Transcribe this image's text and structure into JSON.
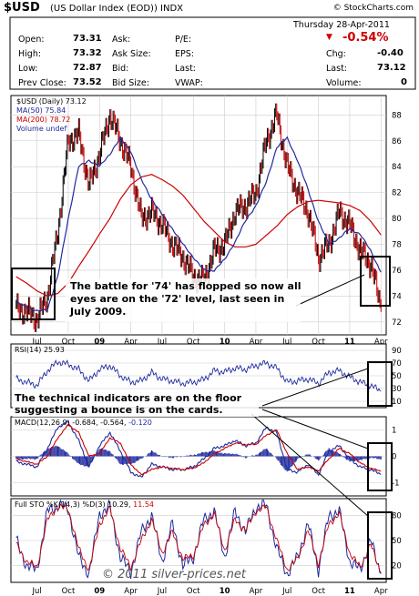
{
  "header": {
    "symbol": "$USD",
    "name": "(US Dollar Index (EOD))",
    "exchange": "INDX",
    "brand": "© StockCharts.com",
    "date": "Thursday  28-Apr-2011",
    "pct_change": "-0.54%"
  },
  "quote": {
    "open_label": "Open:",
    "open": "73.31",
    "high_label": "High:",
    "high": "73.32",
    "low_label": "Low:",
    "low": "72.87",
    "prev_label": "Prev Close:",
    "prev": "73.52",
    "ask_label": "Ask:",
    "asksize_label": "Ask Size:",
    "bid_label": "Bid:",
    "bidsize_label": "Bid Size:",
    "pe_label": "P/E:",
    "eps_label": "EPS:",
    "last_label": "Last:",
    "vwap_label": "VWAP:",
    "chg_label": "Chg:",
    "chg": "-0.40",
    "last2_label": "Last:",
    "last": "73.12",
    "volume_label": "Volume:",
    "volume": "0"
  },
  "colors": {
    "price_up": "#000000",
    "price_down": "#cc0000",
    "ma50": "#1f2a9e",
    "ma200": "#cc0000",
    "indicator": "#1f2a9e",
    "signal": "#cc0000",
    "box": "#000000",
    "pct_red": "#cc0000"
  },
  "chart_data": [
    {
      "type": "line",
      "title": "$USD (Daily) 73.12",
      "legend": [
        "$USD (Daily) 73.12",
        "MA(50) 75.84",
        "MA(200) 78.72",
        "Volume undef"
      ],
      "ylim": [
        71,
        89.5
      ],
      "yticks": [
        72,
        74,
        76,
        78,
        80,
        82,
        84,
        86,
        88
      ],
      "x_labels": [
        "Jul",
        "Oct",
        "09",
        "Apr",
        "Jul",
        "Oct",
        "10",
        "Apr",
        "Jul",
        "Oct",
        "11",
        "Apr"
      ],
      "x": [
        "2008-05",
        "2008-06",
        "2008-07",
        "2008-08",
        "2008-09",
        "2008-10",
        "2008-11",
        "2008-12",
        "2009-01",
        "2009-02",
        "2009-03",
        "2009-04",
        "2009-05",
        "2009-06",
        "2009-07",
        "2009-08",
        "2009-09",
        "2009-10",
        "2009-11",
        "2009-12",
        "2010-01",
        "2010-02",
        "2010-03",
        "2010-04",
        "2010-05",
        "2010-06",
        "2010-07",
        "2010-08",
        "2010-09",
        "2010-10",
        "2010-11",
        "2010-12",
        "2011-01",
        "2011-02",
        "2011-03",
        "2011-04"
      ],
      "series": [
        {
          "name": "$USD (Daily) 73.12",
          "values": [
            73.0,
            72.8,
            72.2,
            74.0,
            79.0,
            86.0,
            86.5,
            82.5,
            85.0,
            88.0,
            86.0,
            84.0,
            80.0,
            80.5,
            79.5,
            78.0,
            77.0,
            75.5,
            75.2,
            77.5,
            78.0,
            80.5,
            81.0,
            82.0,
            86.0,
            88.0,
            84.0,
            82.0,
            80.5,
            77.0,
            78.0,
            80.5,
            79.5,
            77.5,
            76.5,
            73.12
          ]
        },
        {
          "name": "MA(50) 75.84",
          "values": [
            73.5,
            73.2,
            72.8,
            73.0,
            75.5,
            80.0,
            84.0,
            84.5,
            84.0,
            85.0,
            86.2,
            85.2,
            83.0,
            81.5,
            80.3,
            79.2,
            78.0,
            77.0,
            76.0,
            76.0,
            76.8,
            78.2,
            79.8,
            81.0,
            82.8,
            85.5,
            86.2,
            84.5,
            82.2,
            79.8,
            78.0,
            78.5,
            79.2,
            78.8,
            77.5,
            75.84
          ]
        },
        {
          "name": "MA(200) 78.72",
          "values": [
            75.5,
            75.0,
            74.4,
            74.0,
            74.2,
            75.0,
            76.3,
            77.5,
            78.8,
            80.0,
            81.5,
            82.6,
            83.2,
            83.4,
            83.0,
            82.5,
            81.8,
            80.8,
            79.8,
            79.0,
            78.2,
            77.8,
            77.8,
            78.0,
            78.7,
            79.4,
            80.3,
            80.9,
            81.3,
            81.4,
            81.3,
            81.2,
            81.0,
            80.6,
            79.8,
            78.72
          ]
        }
      ]
    },
    {
      "type": "line",
      "title": "RSI(14) 25.93",
      "ylim": [
        0,
        100
      ],
      "yticks": [
        10,
        30,
        50,
        70,
        90
      ],
      "series": [
        {
          "name": "RSI(14) 25.93",
          "values": [
            45,
            40,
            35,
            58,
            72,
            68,
            60,
            42,
            60,
            66,
            50,
            40,
            42,
            55,
            45,
            42,
            38,
            40,
            44,
            58,
            56,
            62,
            60,
            66,
            70,
            62,
            40,
            42,
            45,
            38,
            55,
            58,
            48,
            40,
            35,
            25.93
          ]
        }
      ]
    },
    {
      "type": "line",
      "title": "MACD(12,26,9) -0.684, -0.564, -0.120",
      "ylim": [
        -1.5,
        1.5
      ],
      "yticks": [
        -1,
        0,
        1
      ],
      "series": [
        {
          "name": "MACD(12,26,9) -0.684",
          "values": [
            -0.2,
            -0.3,
            -0.4,
            0.3,
            1.1,
            1.3,
            0.6,
            -0.4,
            0.4,
            0.9,
            0.2,
            -0.6,
            -0.8,
            -0.3,
            -0.4,
            -0.5,
            -0.5,
            -0.4,
            -0.1,
            0.3,
            0.4,
            0.6,
            0.4,
            0.5,
            1.1,
            0.9,
            -0.5,
            -0.6,
            -0.3,
            -0.7,
            0.2,
            0.4,
            -0.1,
            -0.4,
            -0.5,
            -0.684
          ]
        },
        {
          "name": "-0.564",
          "values": [
            -0.1,
            -0.2,
            -0.3,
            0.0,
            0.7,
            1.2,
            0.9,
            0.0,
            0.1,
            0.7,
            0.5,
            -0.3,
            -0.7,
            -0.5,
            -0.4,
            -0.45,
            -0.5,
            -0.45,
            -0.25,
            0.1,
            0.3,
            0.5,
            0.45,
            0.45,
            0.8,
            1.0,
            0.1,
            -0.5,
            -0.4,
            -0.55,
            -0.1,
            0.3,
            0.1,
            -0.25,
            -0.45,
            -0.564
          ]
        }
      ]
    },
    {
      "type": "line",
      "title": "Full STO %K(14,3) %D(3) 10.29, 11.54",
      "ylim": [
        0,
        100
      ],
      "yticks": [
        20,
        50,
        80
      ],
      "series": [
        {
          "name": "%K(14,3) 10.29",
          "values": [
            50,
            20,
            15,
            85,
            92,
            88,
            30,
            10,
            82,
            90,
            30,
            12,
            60,
            80,
            25,
            70,
            20,
            30,
            75,
            85,
            30,
            85,
            60,
            90,
            92,
            40,
            10,
            30,
            70,
            15,
            80,
            85,
            25,
            15,
            50,
            10.29
          ]
        },
        {
          "name": "%D(3) 11.54",
          "values": [
            45,
            25,
            18,
            75,
            90,
            88,
            40,
            15,
            70,
            88,
            40,
            18,
            50,
            75,
            35,
            60,
            28,
            32,
            68,
            82,
            38,
            75,
            62,
            85,
            90,
            50,
            15,
            28,
            62,
            22,
            70,
            82,
            35,
            18,
            45,
            11.54
          ]
        }
      ]
    }
  ],
  "annotations": {
    "price_note": "The battle for '74' has flopped so now all eyes are on the '72' level, last seen in July 2009.",
    "price_note_lines": [
      "The battle for '74' has flopped so now all",
      "eyes are on the '72' level, last seen in",
      "July 2009."
    ],
    "indicator_note_lines": [
      "The technical indicators are on the floor",
      "suggesting a bounce is on the cards."
    ],
    "copyright": "© 2011 silver-prices.net"
  },
  "pane_legends": {
    "rsi": "RSI(14) 25.93",
    "macd_main": "MACD(12,26,9) -0.684, -0.564,",
    "macd_hist": "-0.120",
    "sto_main": "Full STO %K(14,3) %D(3) 10.29,",
    "sto_d": "11.54"
  }
}
